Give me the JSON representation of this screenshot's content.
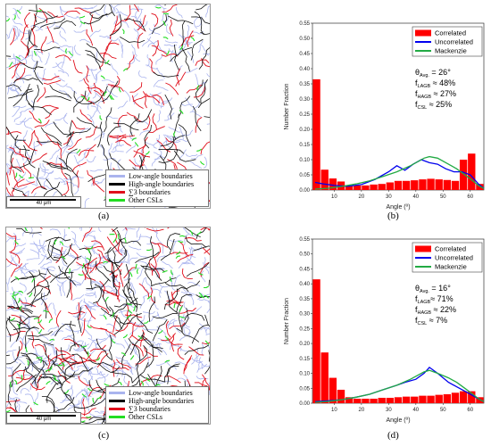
{
  "panels": [
    {
      "id": "a",
      "label": "(a)",
      "map": {
        "legend": [
          {
            "text": "Low-angle boundaries",
            "color": "#aab4ee"
          },
          {
            "text": "High-angle boundaries",
            "color": "#000000"
          },
          {
            "text": "∑3 boundaries",
            "color": "#e0101c"
          },
          {
            "text": "Other CSLs",
            "color": "#22dd22"
          }
        ],
        "scale": "40 μm"
      }
    },
    {
      "id": "b",
      "label": "(b)",
      "annotation": [
        {
          "main": "θ",
          "sub": "Avg.",
          "rest": " = 26°"
        },
        {
          "main": "f",
          "sub": "LAGB",
          "rest": " ≈ 48%"
        },
        {
          "main": "f",
          "sub": "HAGB",
          "rest": " ≈ 27%"
        },
        {
          "main": "f",
          "sub": "CSL",
          "rest": " ≈ 25%"
        }
      ]
    },
    {
      "id": "c",
      "label": "(c)",
      "map": {
        "legend": [
          {
            "text": "Low-angle boundaries",
            "color": "#aab4ee"
          },
          {
            "text": "High-angle boundaries",
            "color": "#000000"
          },
          {
            "text": "∑3 boundaries",
            "color": "#e0101c"
          },
          {
            "text": "Other CSLs",
            "color": "#22dd22"
          }
        ],
        "scale": "40 μm"
      }
    },
    {
      "id": "d",
      "label": "(d)",
      "annotation": [
        {
          "main": "θ",
          "sub": "Avg.",
          "rest": " = 16°"
        },
        {
          "main": "f",
          "sub": "LAGB",
          "rest": "≈ 71%"
        },
        {
          "main": "f",
          "sub": "HAGB",
          "rest": " ≈ 22%"
        },
        {
          "main": "f",
          "sub": "CSL",
          "rest": " ≈ 7%"
        }
      ]
    }
  ],
  "chart_data": [
    {
      "type": "bar",
      "panel": "b",
      "xlabel": "Angle (º)",
      "ylabel": "Number Fraction",
      "xlim": [
        2,
        65
      ],
      "ylim": [
        0,
        0.55
      ],
      "xticks": [
        10,
        20,
        30,
        40,
        50,
        60
      ],
      "yticks": [
        "0.00",
        "0.05",
        "0.10",
        "0.15",
        "0.20",
        "0.25",
        "0.30",
        "0.35",
        "0.40",
        "0.45",
        "0.50",
        "0.55"
      ],
      "legend_position": "top-right",
      "bar_width": 3,
      "series": [
        {
          "name": "Correlated",
          "type": "bar",
          "color": "#ff0000",
          "x": [
            3.5,
            6.5,
            9.5,
            12.5,
            15.5,
            18.5,
            21.5,
            24.5,
            27.5,
            30.5,
            33.5,
            36.5,
            39.5,
            42.5,
            45.5,
            48.5,
            51.5,
            54.5,
            57.5,
            60.5,
            63.5
          ],
          "y": [
            0.365,
            0.067,
            0.038,
            0.028,
            0.015,
            0.015,
            0.015,
            0.018,
            0.02,
            0.025,
            0.03,
            0.03,
            0.032,
            0.035,
            0.037,
            0.035,
            0.033,
            0.03,
            0.1,
            0.12,
            0.02
          ]
        },
        {
          "name": "Uncorrelated",
          "type": "line",
          "color": "#0000ee",
          "x": [
            3,
            6,
            10,
            15,
            20,
            25,
            30,
            33,
            36,
            39,
            42,
            45,
            48,
            51,
            54,
            57,
            60,
            63,
            65
          ],
          "y": [
            0.025,
            0.02,
            0.015,
            0.012,
            0.018,
            0.035,
            0.06,
            0.08,
            0.065,
            0.085,
            0.1,
            0.09,
            0.085,
            0.07,
            0.06,
            0.06,
            0.05,
            0.02,
            0.005
          ]
        },
        {
          "name": "Mackenzie",
          "type": "line",
          "color": "#22aa44",
          "x": [
            3,
            8,
            13,
            18,
            23,
            28,
            33,
            38,
            43,
            45,
            48,
            52,
            55,
            58,
            61,
            63,
            65
          ],
          "y": [
            0.003,
            0.006,
            0.012,
            0.02,
            0.03,
            0.045,
            0.06,
            0.08,
            0.105,
            0.11,
            0.105,
            0.085,
            0.07,
            0.05,
            0.03,
            0.015,
            0.005
          ]
        }
      ]
    },
    {
      "type": "bar",
      "panel": "d",
      "xlabel": "Angle (º)",
      "ylabel": "Number Fraction",
      "xlim": [
        2,
        65
      ],
      "ylim": [
        0,
        0.55
      ],
      "xticks": [
        10,
        20,
        30,
        40,
        50,
        60
      ],
      "yticks": [
        "0.00",
        "0.05",
        "0.10",
        "0.15",
        "0.20",
        "0.25",
        "0.30",
        "0.35",
        "0.40",
        "0.45",
        "0.50",
        "0.55"
      ],
      "legend_position": "top-right",
      "bar_width": 3,
      "series": [
        {
          "name": "Correlated",
          "type": "bar",
          "color": "#ff0000",
          "x": [
            3.5,
            6.5,
            9.5,
            12.5,
            15.5,
            18.5,
            21.5,
            24.5,
            27.5,
            30.5,
            33.5,
            36.5,
            39.5,
            42.5,
            45.5,
            48.5,
            51.5,
            54.5,
            57.5,
            60.5,
            63.5
          ],
          "y": [
            0.415,
            0.17,
            0.085,
            0.045,
            0.02,
            0.015,
            0.015,
            0.015,
            0.018,
            0.018,
            0.02,
            0.022,
            0.022,
            0.025,
            0.025,
            0.028,
            0.03,
            0.035,
            0.04,
            0.04,
            0.02
          ]
        },
        {
          "name": "Uncorrelated",
          "type": "line",
          "color": "#0000ee",
          "x": [
            3,
            8,
            13,
            18,
            23,
            28,
            33,
            36,
            40,
            43,
            45,
            48,
            52,
            55,
            58,
            61,
            63,
            65
          ],
          "y": [
            0.005,
            0.008,
            0.012,
            0.02,
            0.03,
            0.045,
            0.06,
            0.07,
            0.08,
            0.1,
            0.12,
            0.1,
            0.07,
            0.055,
            0.04,
            0.025,
            0.015,
            0.005
          ]
        },
        {
          "name": "Mackenzie",
          "type": "line",
          "color": "#22aa44",
          "x": [
            3,
            8,
            13,
            18,
            23,
            28,
            33,
            38,
            43,
            45,
            48,
            52,
            55,
            58,
            61,
            63,
            65
          ],
          "y": [
            0.003,
            0.006,
            0.012,
            0.02,
            0.03,
            0.045,
            0.06,
            0.08,
            0.105,
            0.11,
            0.1,
            0.085,
            0.07,
            0.05,
            0.03,
            0.015,
            0.005
          ]
        }
      ]
    }
  ]
}
